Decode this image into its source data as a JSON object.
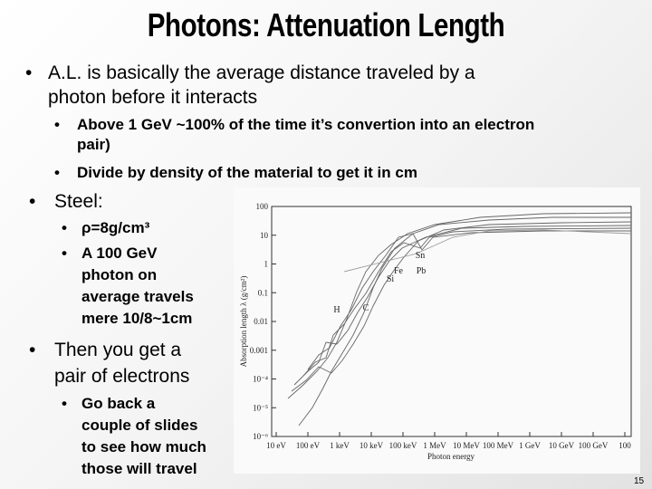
{
  "title": "Photons: Attenuation Length",
  "bullets": [
    {
      "lines": [
        "A.L. is basically the average distance traveled by a",
        "photon before it interacts"
      ],
      "sub": [
        {
          "lines": [
            "Above 1 GeV ~100% of the time it’s convertion into an electron",
            "pair)"
          ]
        },
        {
          "lines": [
            "Divide by density of the material to get it in cm"
          ]
        }
      ]
    },
    {
      "lines": [
        "Steel:"
      ],
      "sub": [
        {
          "lines": [
            "ρ=8g/cm³"
          ]
        },
        {
          "lines": [
            "A 100 GeV",
            "photon on",
            "average travels",
            "mere 10/8~1cm"
          ]
        }
      ]
    },
    {
      "lines": [
        "Then you get a",
        "pair of electrons"
      ],
      "sub": [
        {
          "lines": [
            "Go back a",
            "couple of slides",
            "to see how much",
            "those will travel"
          ]
        }
      ]
    }
  ],
  "figure": {
    "y_axis_label": "Absorption length λ (g/cm²)",
    "x_axis_label": "Photon energy",
    "y_ticks": [
      "100",
      "10",
      "1",
      "0.1",
      "0.01",
      "0.001",
      "10⁻⁴",
      "10⁻⁵",
      "10⁻⁶"
    ],
    "x_ticks": [
      "10 eV",
      "100 eV",
      "1 keV",
      "10 keV",
      "100 keV",
      "1 MeV",
      "10 MeV",
      "100 MeV",
      "1 GeV",
      "10 GeV",
      "100 GeV",
      "100"
    ],
    "curve_labels": [
      "H",
      "C",
      "Si",
      "Fe",
      "Sn",
      "Pb"
    ]
  },
  "page_number": "15"
}
